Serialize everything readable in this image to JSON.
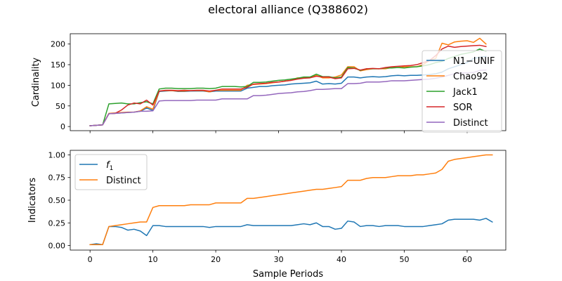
{
  "figure_title": "electoral alliance (Q388602)",
  "chart_data": [
    {
      "type": "line",
      "ylabel": "Cardinality",
      "xlabel": "",
      "xlim": [
        -3.15,
        66.15
      ],
      "ylim": [
        -10,
        225
      ],
      "xticks": [
        0,
        10,
        20,
        30,
        40,
        50,
        60
      ],
      "yticks": [
        0,
        50,
        100,
        150,
        200
      ],
      "yticklabels": [
        "0",
        "50",
        "100",
        "150",
        "200"
      ],
      "show_xticklabels": false,
      "legend_position": "center-right",
      "series": [
        {
          "name": "N1−UNIF",
          "color": "#1f77b4",
          "values": [
            2,
            3,
            4,
            31,
            32,
            33,
            34,
            35,
            37,
            45,
            39,
            85,
            86,
            87,
            85,
            85,
            86,
            86,
            86,
            84,
            86,
            86,
            86,
            86,
            86,
            93,
            95,
            97,
            97,
            99,
            100,
            101,
            103,
            104,
            105,
            106,
            110,
            103,
            104,
            103,
            105,
            120,
            120,
            118,
            120,
            121,
            120,
            121,
            123,
            124,
            123,
            124,
            124,
            125,
            126,
            128,
            132,
            140,
            145,
            150,
            155,
            165,
            168,
            170
          ]
        },
        {
          "name": "Chao92",
          "color": "#ff7f0e",
          "values": [
            2,
            3,
            4,
            32,
            33,
            34,
            35,
            35,
            38,
            48,
            42,
            86,
            87,
            87,
            86,
            86,
            87,
            87,
            87,
            84,
            88,
            88,
            88,
            88,
            88,
            100,
            102,
            103,
            104,
            106,
            108,
            110,
            112,
            118,
            118,
            120,
            124,
            118,
            118,
            120,
            125,
            145,
            145,
            135,
            138,
            140,
            140,
            140,
            143,
            143,
            145,
            145,
            145,
            150,
            160,
            165,
            202,
            198,
            205,
            207,
            208,
            204,
            214,
            200
          ]
        },
        {
          "name": "Jack1",
          "color": "#2ca02c",
          "values": [
            2,
            3,
            4,
            55,
            56,
            57,
            55,
            55,
            58,
            60,
            55,
            91,
            93,
            93,
            92,
            92,
            92,
            93,
            93,
            92,
            93,
            97,
            97,
            97,
            96,
            97,
            107,
            107,
            108,
            110,
            112,
            113,
            115,
            117,
            120,
            120,
            127,
            121,
            121,
            118,
            120,
            143,
            142,
            136,
            140,
            140,
            140,
            142,
            142,
            143,
            142,
            144,
            145,
            147,
            150,
            155,
            158,
            165,
            170,
            175,
            178,
            181,
            188,
            182
          ]
        },
        {
          "name": "SOR",
          "color": "#d62728",
          "values": [
            2,
            3,
            4,
            31,
            32,
            40,
            52,
            57,
            55,
            64,
            52,
            86,
            88,
            88,
            87,
            88,
            87,
            88,
            88,
            86,
            88,
            91,
            91,
            91,
            91,
            95,
            103,
            104,
            105,
            107,
            108,
            110,
            112,
            115,
            117,
            118,
            122,
            120,
            120,
            116,
            118,
            140,
            141,
            137,
            140,
            141,
            140,
            143,
            145,
            146,
            147,
            148,
            150,
            155,
            160,
            172,
            188,
            195,
            192,
            194,
            195,
            196,
            197,
            194
          ]
        },
        {
          "name": "Distinct",
          "color": "#9467bd",
          "values": [
            2,
            3,
            4,
            31,
            32,
            33,
            34,
            35,
            37,
            37,
            38,
            62,
            63,
            63,
            63,
            63,
            63,
            64,
            64,
            64,
            64,
            67,
            67,
            67,
            67,
            67,
            75,
            75,
            76,
            78,
            80,
            81,
            82,
            84,
            85,
            87,
            90,
            90,
            91,
            92,
            92,
            104,
            104,
            105,
            108,
            108,
            108,
            109,
            111,
            111,
            111,
            112,
            113,
            114,
            115,
            117,
            120,
            124,
            128,
            130,
            130,
            131,
            136,
            137
          ]
        }
      ]
    },
    {
      "type": "line",
      "ylabel": "Indicators",
      "xlabel": "Sample Periods",
      "xlim": [
        -3.15,
        66.15
      ],
      "ylim": [
        -0.05,
        1.05
      ],
      "xticks": [
        0,
        10,
        20,
        30,
        40,
        50,
        60
      ],
      "xticklabels": [
        "0",
        "10",
        "20",
        "30",
        "40",
        "50",
        "60"
      ],
      "yticks": [
        0.0,
        0.25,
        0.5,
        0.75,
        1.0
      ],
      "yticklabels": [
        "0.00",
        "0.25",
        "0.50",
        "0.75",
        "1.00"
      ],
      "legend_position": "upper-left",
      "series": [
        {
          "name": "f1",
          "label_main": "f",
          "label_sub": "1",
          "color": "#1f77b4",
          "values": [
            0.01,
            0.02,
            0.01,
            0.21,
            0.21,
            0.2,
            0.17,
            0.18,
            0.16,
            0.11,
            0.22,
            0.22,
            0.21,
            0.21,
            0.21,
            0.21,
            0.21,
            0.21,
            0.21,
            0.2,
            0.21,
            0.21,
            0.21,
            0.21,
            0.21,
            0.23,
            0.22,
            0.22,
            0.22,
            0.22,
            0.22,
            0.22,
            0.22,
            0.23,
            0.24,
            0.23,
            0.25,
            0.21,
            0.21,
            0.18,
            0.19,
            0.27,
            0.26,
            0.21,
            0.22,
            0.22,
            0.21,
            0.22,
            0.22,
            0.22,
            0.21,
            0.21,
            0.21,
            0.21,
            0.22,
            0.23,
            0.24,
            0.28,
            0.29,
            0.29,
            0.29,
            0.29,
            0.28,
            0.3,
            0.26
          ]
        },
        {
          "name": "Distinct",
          "color": "#ff7f0e",
          "values": [
            0.01,
            0.01,
            0.01,
            0.21,
            0.22,
            0.23,
            0.24,
            0.25,
            0.26,
            0.26,
            0.42,
            0.44,
            0.44,
            0.44,
            0.44,
            0.44,
            0.45,
            0.45,
            0.45,
            0.45,
            0.47,
            0.47,
            0.47,
            0.47,
            0.47,
            0.52,
            0.52,
            0.53,
            0.54,
            0.55,
            0.56,
            0.57,
            0.58,
            0.59,
            0.6,
            0.61,
            0.62,
            0.62,
            0.63,
            0.64,
            0.65,
            0.72,
            0.72,
            0.72,
            0.74,
            0.75,
            0.75,
            0.75,
            0.76,
            0.77,
            0.77,
            0.77,
            0.78,
            0.78,
            0.79,
            0.8,
            0.84,
            0.93,
            0.95,
            0.96,
            0.97,
            0.98,
            0.99,
            1.0,
            1.0
          ]
        }
      ]
    }
  ]
}
